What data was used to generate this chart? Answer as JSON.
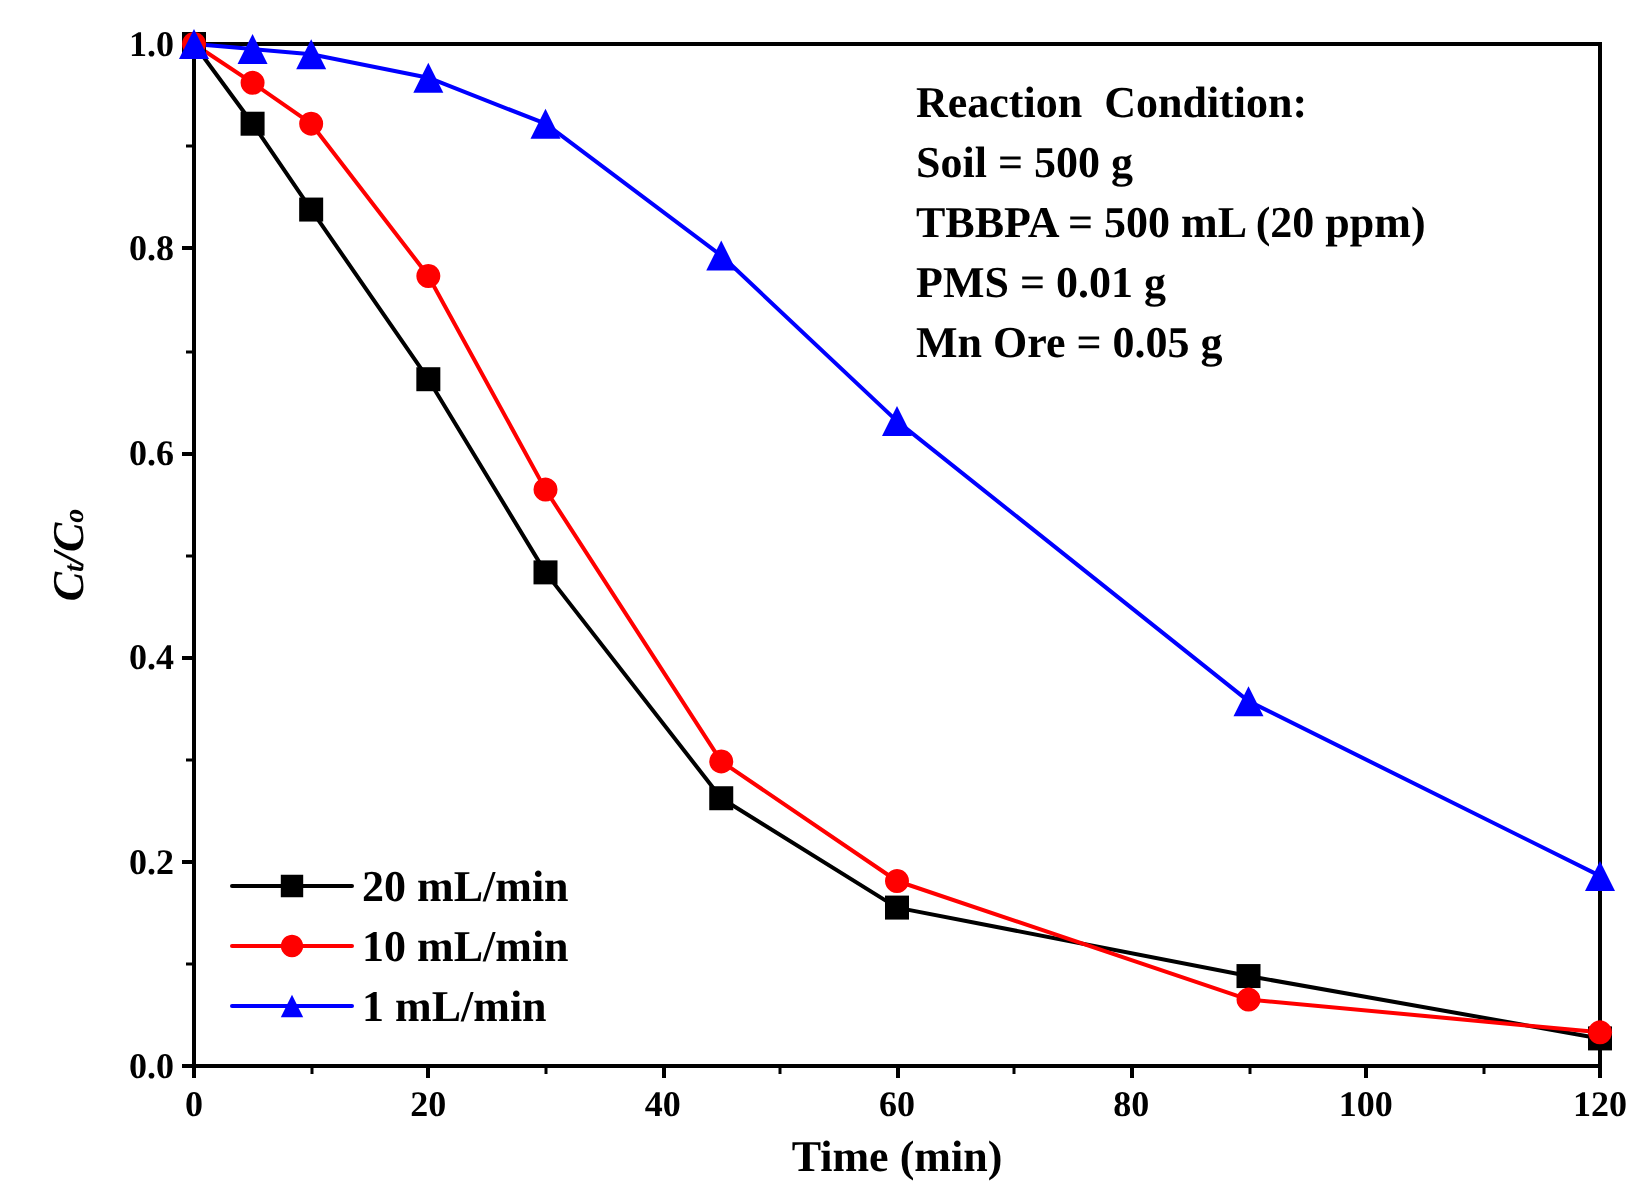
{
  "chart_data": {
    "type": "line",
    "xlabel": "Time (min)",
    "ylabel": "C$_{t}$/C$_{o}$",
    "x": [
      0,
      5,
      10,
      20,
      30,
      45,
      60,
      90,
      120
    ],
    "xlim": [
      0,
      120
    ],
    "xticks": [
      0,
      20,
      40,
      60,
      80,
      100,
      120
    ],
    "ylim": [
      0,
      1.0
    ],
    "yticks": [
      {
        "value": 0,
        "label": "0.0"
      },
      0.2,
      0.4,
      0.6,
      0.8,
      {
        "value": 1,
        "label": "1.0"
      }
    ],
    "grid": false,
    "legend": "bottom left",
    "line_style": "solid",
    "series": [
      {
        "name": "20 mL/min",
        "color": "#000000",
        "marker": "square",
        "values": [
          1.0,
          0.922,
          0.838,
          0.672,
          0.483,
          0.262,
          0.155,
          0.088,
          0.027
        ]
      },
      {
        "name": "10 mL/min",
        "color": "#ff0000",
        "marker": "circle",
        "values": [
          1.0,
          0.962,
          0.922,
          0.773,
          0.564,
          0.298,
          0.181,
          0.065,
          0.033
        ]
      },
      {
        "name": "1 mL/min",
        "color": "#0000ff",
        "marker": "triangle",
        "values": [
          1.0,
          0.995,
          0.99,
          0.967,
          0.922,
          0.793,
          0.631,
          0.357,
          0.186
        ]
      }
    ],
    "annotations": [
      "Reaction  Condition:",
      "Soil = 500 g",
      "TBBPA = 500 mL (20 ppm)",
      "PMS = 0.01 g",
      "Mn Ore = 0.05 g"
    ]
  }
}
